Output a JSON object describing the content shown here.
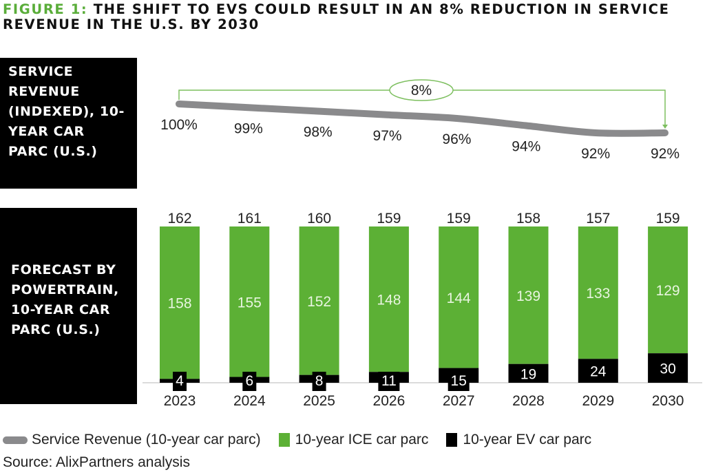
{
  "title": {
    "prefix": "FIGURE 1:",
    "text": " THE SHIFT TO EVS COULD RESULT IN AN 8% REDUCTION IN SERVICE REVENUE IN THE U.S. BY 2030"
  },
  "panels": {
    "top_label": "SERVICE REVENUE (INDEXED), 10-YEAR CAR PARC (U.S.)",
    "bottom_label": "FORECAST BY POWERTRAIN, 10-YEAR CAR PARC (U.S.)"
  },
  "colors": {
    "ice": "#5cb035",
    "ev": "#000000",
    "revenue_line": "#8a8a8c",
    "annotation": "#7dbf5f",
    "title_accent": "#5aad3a"
  },
  "chart_data": [
    {
      "type": "line",
      "title": "Service Revenue (Indexed), 10-Year Car Parc (U.S.)",
      "x": [
        "2023",
        "2024",
        "2025",
        "2026",
        "2027",
        "2028",
        "2029",
        "2030"
      ],
      "series": [
        {
          "name": "Service Revenue (10-year car parc)",
          "values": [
            100,
            99,
            98,
            97,
            96,
            94,
            92,
            92
          ],
          "labels": [
            "100%",
            "99%",
            "98%",
            "97%",
            "96%",
            "94%",
            "92%",
            "92%"
          ]
        }
      ],
      "annotation": {
        "text": "8%",
        "from": "2023",
        "to": "2030",
        "meaning": "reduction"
      },
      "xlabel": "",
      "ylabel": "",
      "grid": false
    },
    {
      "type": "bar",
      "stacked": true,
      "normalized": true,
      "title": "Forecast by Powertrain, 10-Year Car Parc (U.S.)",
      "categories": [
        "2023",
        "2024",
        "2025",
        "2026",
        "2027",
        "2028",
        "2029",
        "2030"
      ],
      "series": [
        {
          "name": "10-year EV car parc",
          "values": [
            4,
            6,
            8,
            11,
            15,
            19,
            24,
            30
          ]
        },
        {
          "name": "10-year ICE car parc",
          "values": [
            158,
            155,
            152,
            148,
            144,
            139,
            133,
            129
          ]
        }
      ],
      "totals": [
        162,
        161,
        160,
        159,
        159,
        158,
        157,
        159
      ],
      "xlabel": "",
      "ylabel": "",
      "grid": false
    }
  ],
  "legend": [
    {
      "type": "line",
      "label": "Service Revenue (10-year car parc)"
    },
    {
      "type": "ice",
      "label": "10-year ICE car parc"
    },
    {
      "type": "ev",
      "label": "10-year EV car parc"
    }
  ],
  "source": "Source: AlixPartners analysis"
}
